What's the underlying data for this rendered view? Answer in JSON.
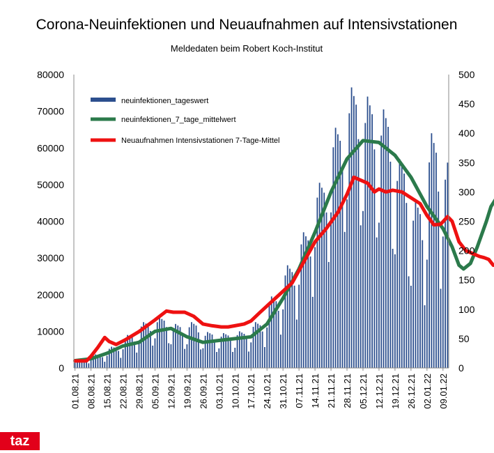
{
  "brand": {
    "logo_text": "taz",
    "logo_color": "#e2001a"
  },
  "chart_data": {
    "type": "bar+line",
    "title": "Corona-Neuinfektionen und Neuaufnahmen auf Intensivstationen",
    "subtitle": "Meldedaten beim Robert Koch-Institut",
    "x_start": "2021-08-01",
    "x_end": "2022-01-11",
    "x_tick_labels": [
      "01.08.21",
      "08.08.21",
      "15.08.21",
      "22.08.21",
      "29.08.21",
      "05.09.21",
      "12.09.21",
      "19.09.21",
      "26.09.21",
      "03.10.21",
      "10.10.21",
      "17.10.21",
      "24.10.21",
      "31.10.21",
      "07.11.21",
      "14.11.21",
      "21.11.21",
      "28.11.21",
      "05.12.21",
      "12.12.21",
      "19.12.21",
      "26.12.21",
      "02.01.22",
      "09.01.22"
    ],
    "y_left": {
      "min": 0,
      "max": 80000,
      "ticks": [
        0,
        10000,
        20000,
        30000,
        40000,
        50000,
        60000,
        70000,
        80000
      ]
    },
    "y_right": {
      "min": 0,
      "max": 500,
      "ticks": [
        0,
        50,
        100,
        150,
        200,
        250,
        300,
        350,
        400,
        450,
        500
      ]
    },
    "colors": {
      "bars": "#2c4f8e",
      "avg7": "#2b7a4b",
      "icu": "#ee1111"
    },
    "legend": [
      {
        "key": "daily",
        "label": "neuinfektionen_tageswert"
      },
      {
        "key": "avg7",
        "label": "neuinfektionen_7_tage_mittelwert"
      },
      {
        "key": "icu",
        "label": "Neuaufnahmen Intensivstationen 7-Tage-Mittel"
      }
    ],
    "series": {
      "daily_weekly_base": [
        2000,
        3500,
        6000,
        8500,
        10500,
        11000,
        7000,
        7500,
        5000,
        5000,
        6000,
        8000,
        11500,
        17000,
        30000,
        47000,
        60000,
        70000,
        63000,
        50000,
        38000,
        23000,
        45000,
        53000
      ],
      "daily_weekly_peak": [
        2300,
        3700,
        5800,
        9000,
        12500,
        13800,
        12000,
        12500,
        9800,
        9500,
        10000,
        12500,
        19500,
        28000,
        37000,
        50500,
        65500,
        76500,
        74000,
        70500,
        57000,
        45500,
        64000,
        56000
      ],
      "daily_weekly_low": [
        1000,
        1200,
        2000,
        3000,
        4500,
        5000,
        3500,
        3200,
        3000,
        3100,
        3100,
        4000,
        6500,
        9500,
        15000,
        23500,
        30000,
        29500,
        26000,
        23000,
        17000,
        10000,
        11000,
        25000
      ],
      "avg7": [
        [
          0,
          2000
        ],
        [
          7,
          2500
        ],
        [
          14,
          4000
        ],
        [
          21,
          6000
        ],
        [
          28,
          7000
        ],
        [
          35,
          10000
        ],
        [
          42,
          10800
        ],
        [
          49,
          8500
        ],
        [
          56,
          7000
        ],
        [
          63,
          7500
        ],
        [
          70,
          8000
        ],
        [
          77,
          8500
        ],
        [
          84,
          12000
        ],
        [
          91,
          19000
        ],
        [
          98,
          27000
        ],
        [
          105,
          37000
        ],
        [
          112,
          48000
        ],
        [
          119,
          57000
        ],
        [
          126,
          62000
        ],
        [
          133,
          61500
        ],
        [
          140,
          58000
        ],
        [
          147,
          52000
        ],
        [
          154,
          44000
        ],
        [
          161,
          38000
        ],
        [
          165,
          33000
        ],
        [
          168,
          28000
        ],
        [
          170,
          27000
        ],
        [
          173,
          28500
        ],
        [
          176,
          33000
        ],
        [
          180,
          40000
        ],
        [
          182,
          44000
        ],
        [
          184,
          46000
        ]
      ],
      "icu": [
        [
          0,
          12
        ],
        [
          5,
          12
        ],
        [
          7,
          20
        ],
        [
          10,
          35
        ],
        [
          13,
          52
        ],
        [
          15,
          45
        ],
        [
          18,
          40
        ],
        [
          22,
          48
        ],
        [
          28,
          62
        ],
        [
          35,
          82
        ],
        [
          40,
          97
        ],
        [
          43,
          95
        ],
        [
          48,
          95
        ],
        [
          52,
          88
        ],
        [
          56,
          75
        ],
        [
          60,
          72
        ],
        [
          64,
          70
        ],
        [
          67,
          70
        ],
        [
          70,
          72
        ],
        [
          74,
          75
        ],
        [
          77,
          80
        ],
        [
          81,
          95
        ],
        [
          88,
          120
        ],
        [
          95,
          145
        ],
        [
          100,
          180
        ],
        [
          105,
          215
        ],
        [
          110,
          238
        ],
        [
          115,
          265
        ],
        [
          119,
          296
        ],
        [
          122,
          325
        ],
        [
          125,
          320
        ],
        [
          128,
          315
        ],
        [
          131,
          300
        ],
        [
          133,
          305
        ],
        [
          136,
          300
        ],
        [
          139,
          303
        ],
        [
          143,
          300
        ],
        [
          147,
          290
        ],
        [
          151,
          280
        ],
        [
          154,
          260
        ],
        [
          157,
          244
        ],
        [
          160,
          245
        ],
        [
          163,
          258
        ],
        [
          165,
          250
        ],
        [
          168,
          215
        ],
        [
          171,
          200
        ],
        [
          174,
          195
        ],
        [
          177,
          190
        ],
        [
          179,
          188
        ],
        [
          181,
          185
        ],
        [
          183,
          175
        ]
      ]
    }
  }
}
